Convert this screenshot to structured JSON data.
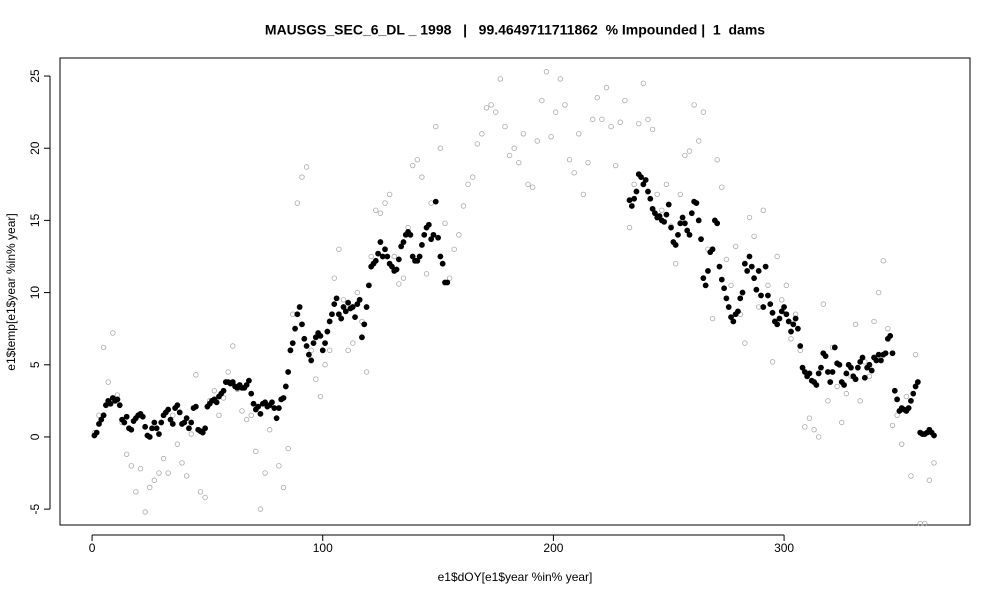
{
  "chart_data": {
    "type": "scatter",
    "title": "MAUSGS_SEC_6_DL _ 1998   |   99.4649711711862  % Impounded |  1  dams",
    "xlabel": "e1$dOY[e1$year %in% year]",
    "ylabel": "e1$temp[e1$year %in% year]",
    "xlim": [
      -13.9,
      380.6
    ],
    "ylim": [
      -6.1,
      26.25
    ],
    "xticks": [
      0,
      100,
      200,
      300
    ],
    "yticks": [
      -5,
      0,
      5,
      10,
      15,
      20,
      25
    ],
    "series": [
      {
        "color": "#aaaaaa",
        "marker": "open",
        "x": [
          1,
          3,
          5,
          7,
          9,
          11,
          13,
          15,
          17,
          19,
          21,
          23,
          25,
          27,
          29,
          31,
          33,
          35,
          37,
          39,
          41,
          43,
          45,
          47,
          49,
          51,
          53,
          55,
          57,
          59,
          61,
          63,
          65,
          67,
          69,
          71,
          73,
          75,
          77,
          79,
          81,
          83,
          85,
          87,
          89,
          91,
          93,
          95,
          97,
          99,
          101,
          103,
          105,
          107,
          109,
          111,
          113,
          115,
          117,
          119,
          121,
          123,
          125,
          127,
          129,
          131,
          133,
          135,
          137,
          139,
          141,
          143,
          145,
          147,
          149,
          151,
          153,
          155,
          157,
          159,
          161,
          163,
          165,
          167,
          169,
          171,
          173,
          175,
          177,
          179,
          181,
          183,
          185,
          187,
          189,
          191,
          193,
          195,
          197,
          199,
          201,
          203,
          205,
          207,
          209,
          211,
          213,
          215,
          217,
          219,
          221,
          223,
          225,
          227,
          229,
          231,
          233,
          235,
          237,
          239,
          241,
          243,
          245,
          247,
          249,
          251,
          253,
          255,
          257,
          259,
          261,
          263,
          265,
          267,
          269,
          271,
          273,
          275,
          277,
          279,
          281,
          283,
          285,
          287,
          289,
          291,
          293,
          295,
          297,
          299,
          301,
          303,
          305,
          307,
          309,
          311,
          313,
          315,
          317,
          319,
          321,
          323,
          325,
          327,
          329,
          331,
          333,
          335,
          337,
          339,
          341,
          343,
          345,
          347,
          349,
          351,
          353,
          355,
          357,
          359,
          361,
          363,
          365
        ],
        "values": [
          0.3,
          1.5,
          6.2,
          3.8,
          7.2,
          2.9,
          1.0,
          -1.2,
          -2.0,
          -3.8,
          -2.2,
          -5.2,
          -3.5,
          -3.0,
          -2.5,
          -1.5,
          -2.5,
          1.5,
          -0.5,
          -1.8,
          -2.7,
          0.2,
          4.3,
          -3.8,
          -4.2,
          2.5,
          3.2,
          1.5,
          2.7,
          4.5,
          6.3,
          3.3,
          1.8,
          1.2,
          1.5,
          -1.0,
          -5.0,
          -2.5,
          0.5,
          2.0,
          -2.0,
          -3.5,
          -0.8,
          8.5,
          16.2,
          18.0,
          18.7,
          6.0,
          4.0,
          2.8,
          5.0,
          6.0,
          11.0,
          13.0,
          9.5,
          6.0,
          6.5,
          10.0,
          8.0,
          4.5,
          12.5,
          15.7,
          15.5,
          16.2,
          16.8,
          12.5,
          10.6,
          11.0,
          14.5,
          18.8,
          19.2,
          18.0,
          11.3,
          16.2,
          21.5,
          20.0,
          14.8,
          11.0,
          13.0,
          14.0,
          16.0,
          17.5,
          18.0,
          20.3,
          21.0,
          22.8,
          23.0,
          22.5,
          24.8,
          21.5,
          19.5,
          20.0,
          19.0,
          21.0,
          17.5,
          17.3,
          20.5,
          23.3,
          25.3,
          20.8,
          22.5,
          24.8,
          23.0,
          19.2,
          18.3,
          21.0,
          16.8,
          19.0,
          22.0,
          23.5,
          22.0,
          24.2,
          21.5,
          18.8,
          21.8,
          23.3,
          14.5,
          17.5,
          21.7,
          24.5,
          22.0,
          21.3,
          16.8,
          15.7,
          17.5,
          14.6,
          12.0,
          16.8,
          19.5,
          19.8,
          23.0,
          20.5,
          22.5,
          13.0,
          8.2,
          19.2,
          17.3,
          12.3,
          10.5,
          13.2,
          8.5,
          6.5,
          15.2,
          13.9,
          9.0,
          15.7,
          10.5,
          5.2,
          12.5,
          9.5,
          10.5,
          6.8,
          8.5,
          6.0,
          0.7,
          1.3,
          0.5,
          0.0,
          9.2,
          2.5,
          6.2,
          3.5,
          1.0,
          3.0,
          4.2,
          7.8,
          2.5,
          5.2,
          4.2,
          8.0,
          10.0,
          12.2,
          7.5,
          0.8,
          1.5,
          -0.5,
          2.8,
          -2.7,
          5.7,
          -6.0,
          -6.0,
          -3.0,
          -1.8
        ]
      },
      {
        "color": "#000000",
        "marker": "filled",
        "x": [
          1,
          2,
          3,
          4,
          5,
          6,
          7,
          8,
          9,
          10,
          11,
          12,
          13,
          14,
          15,
          16,
          17,
          18,
          19,
          20,
          21,
          22,
          23,
          24,
          25,
          26,
          27,
          28,
          29,
          30,
          31,
          32,
          33,
          34,
          35,
          36,
          37,
          38,
          39,
          40,
          41,
          42,
          43,
          44,
          45,
          46,
          47,
          48,
          49,
          50,
          51,
          52,
          53,
          54,
          55,
          56,
          57,
          58,
          59,
          60,
          61,
          62,
          63,
          64,
          65,
          66,
          67,
          68,
          69,
          70,
          71,
          72,
          73,
          74,
          75,
          76,
          77,
          78,
          79,
          80,
          81,
          82,
          83,
          84,
          85,
          86,
          87,
          88,
          89,
          90,
          91,
          92,
          93,
          94,
          95,
          96,
          97,
          98,
          99,
          100,
          101,
          102,
          103,
          104,
          105,
          106,
          107,
          108,
          109,
          110,
          111,
          112,
          113,
          114,
          115,
          116,
          117,
          118,
          119,
          120,
          121,
          122,
          123,
          124,
          125,
          126,
          127,
          128,
          129,
          130,
          131,
          132,
          133,
          134,
          135,
          136,
          137,
          138,
          139,
          140,
          141,
          142,
          143,
          144,
          145,
          146,
          147,
          148,
          149,
          150,
          151,
          152,
          153,
          154,
          233,
          234,
          235,
          236,
          237,
          238,
          239,
          240,
          241,
          242,
          243,
          244,
          245,
          246,
          247,
          248,
          249,
          250,
          251,
          252,
          253,
          254,
          255,
          256,
          257,
          258,
          259,
          260,
          261,
          262,
          263,
          264,
          265,
          266,
          267,
          268,
          269,
          270,
          271,
          272,
          273,
          274,
          275,
          276,
          277,
          278,
          279,
          280,
          281,
          282,
          283,
          284,
          285,
          286,
          287,
          288,
          289,
          290,
          291,
          292,
          293,
          294,
          295,
          296,
          297,
          298,
          299,
          300,
          301,
          302,
          303,
          304,
          305,
          306,
          307,
          308,
          309,
          310,
          311,
          312,
          313,
          314,
          315,
          316,
          317,
          318,
          319,
          320,
          321,
          322,
          323,
          324,
          325,
          326,
          327,
          328,
          329,
          330,
          331,
          332,
          333,
          334,
          335,
          336,
          337,
          338,
          339,
          340,
          341,
          342,
          343,
          344,
          345,
          346,
          347,
          348,
          349,
          350,
          351,
          352,
          353,
          354,
          355,
          356,
          357,
          358,
          359,
          360,
          361,
          362,
          363,
          364,
          365
        ],
        "values": [
          0.1,
          0.3,
          0.9,
          1.2,
          1.5,
          2.2,
          2.5,
          2.3,
          2.7,
          2.5,
          2.6,
          2.2,
          1.2,
          1.0,
          1.4,
          0.6,
          0.5,
          1.1,
          1.3,
          1.5,
          1.6,
          1.4,
          0.7,
          0.1,
          0.0,
          0.6,
          1.0,
          0.6,
          0.2,
          1.0,
          1.5,
          1.7,
          1.9,
          1.2,
          0.9,
          2.0,
          2.2,
          1.7,
          0.9,
          1.0,
          1.3,
          0.6,
          1.0,
          2.0,
          2.1,
          0.5,
          0.4,
          0.3,
          0.6,
          2.1,
          2.3,
          2.5,
          2.6,
          2.4,
          2.8,
          3.0,
          3.2,
          3.8,
          3.8,
          3.7,
          3.8,
          3.5,
          3.4,
          3.6,
          3.4,
          3.4,
          3.6,
          3.9,
          3.0,
          2.3,
          1.9,
          2.1,
          1.6,
          2.3,
          2.4,
          2.1,
          2.2,
          2.4,
          2.0,
          1.3,
          2.0,
          2.6,
          2.7,
          3.5,
          4.5,
          6.0,
          6.5,
          7.5,
          8.5,
          9.0,
          7.8,
          6.8,
          6.3,
          5.7,
          5.3,
          6.5,
          6.9,
          7.2,
          7.0,
          6.0,
          6.5,
          7.3,
          8.0,
          8.5,
          9.2,
          9.6,
          8.5,
          8.2,
          9.0,
          8.7,
          9.3,
          8.9,
          9.0,
          8.3,
          9.2,
          9.5,
          6.9,
          7.8,
          9.0,
          10.5,
          11.8,
          12.0,
          12.2,
          12.7,
          13.5,
          12.5,
          13.0,
          12.5,
          12.0,
          11.8,
          11.5,
          11.6,
          12.3,
          13.2,
          13.5,
          14.0,
          14.2,
          14.0,
          12.5,
          12.2,
          12.2,
          12.5,
          13.3,
          14.0,
          14.5,
          14.7,
          13.7,
          14.0,
          16.3,
          13.8,
          12.5,
          12.0,
          10.7,
          10.7,
          16.4,
          16.0,
          16.5,
          17.0,
          18.2,
          18.0,
          17.5,
          17.8,
          17.0,
          16.5,
          15.8,
          15.5,
          15.2,
          15.3,
          15.0,
          14.9,
          15.4,
          16.1,
          14.5,
          13.5,
          13.3,
          14.0,
          14.8,
          15.2,
          14.8,
          14.3,
          14.0,
          15.5,
          16.3,
          16.2,
          15.0,
          13.7,
          11.0,
          10.5,
          11.5,
          12.8,
          13.0,
          15.0,
          14.8,
          11.8,
          10.9,
          10.3,
          9.6,
          9.0,
          8.3,
          8.0,
          8.5,
          8.7,
          9.6,
          10.0,
          12.0,
          11.5,
          12.5,
          11.8,
          11.0,
          10.2,
          11.5,
          9.8,
          9.0,
          11.8,
          9.8,
          9.2,
          8.6,
          8.0,
          7.8,
          8.2,
          8.7,
          9.0,
          8.5,
          8.0,
          7.3,
          7.8,
          8.2,
          7.5,
          6.3,
          4.8,
          4.5,
          4.2,
          4.4,
          3.9,
          3.8,
          3.6,
          4.4,
          4.8,
          5.8,
          5.6,
          4.5,
          3.8,
          4.5,
          6.2,
          5.1,
          5.0,
          3.8,
          3.6,
          4.4,
          5.0,
          4.8,
          4.2,
          4.0,
          4.8,
          5.2,
          5.5,
          4.1,
          4.8,
          5.0,
          4.6,
          5.5,
          5.3,
          5.7,
          5.3,
          5.7,
          5.8,
          6.8,
          7.0,
          5.8,
          3.2,
          2.6,
          1.8,
          2.0,
          1.9,
          1.8,
          2.0,
          2.5,
          3.0,
          3.5,
          3.8,
          0.3,
          0.2,
          0.2,
          0.3,
          0.5,
          0.3,
          0.1
        ]
      }
    ]
  }
}
